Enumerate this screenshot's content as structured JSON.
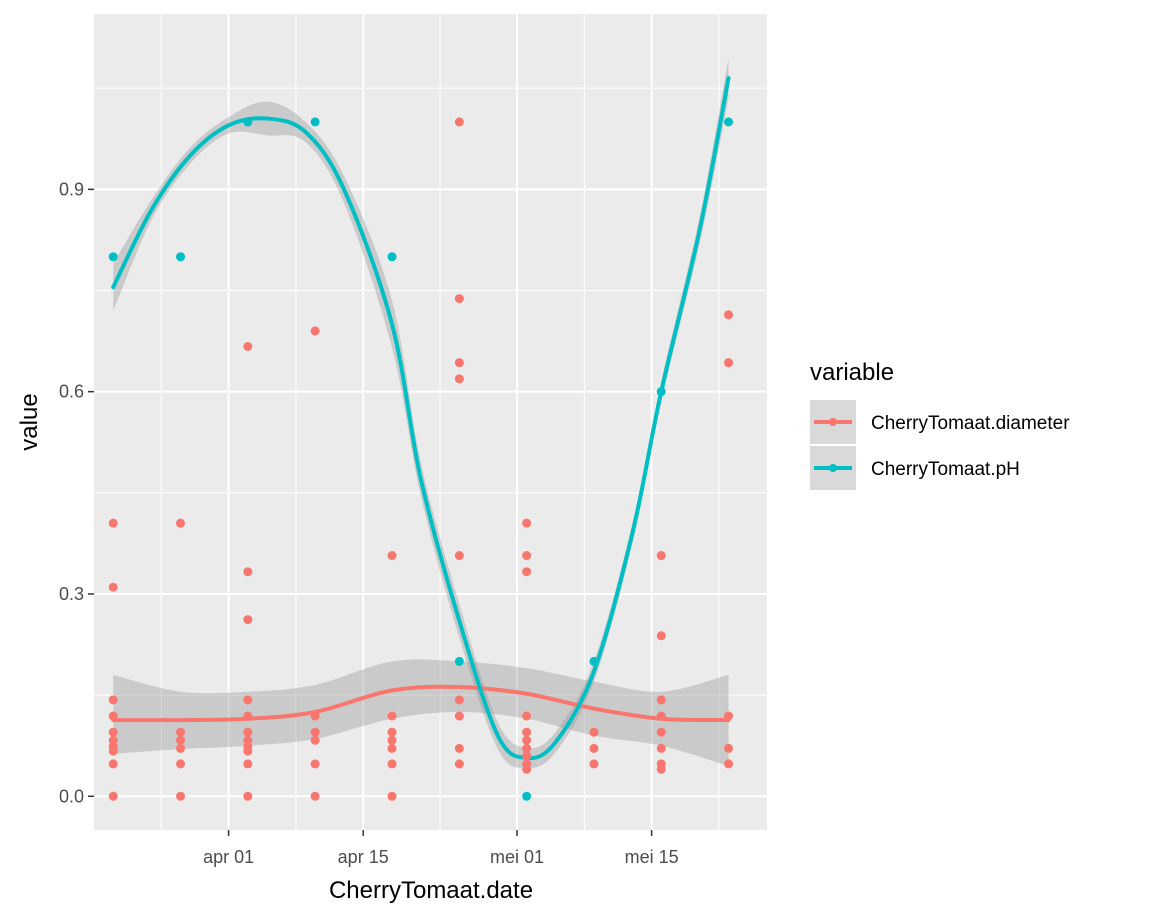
{
  "chart_data": {
    "type": "scatter",
    "xlabel": "CherryTomaat.date",
    "ylabel": "value",
    "x_ticks": [
      "apr 01",
      "apr 15",
      "mei 01",
      "mei 15"
    ],
    "y_ticks": [
      "0.0",
      "0.3",
      "0.6",
      "0.9"
    ],
    "ylim": [
      -0.05,
      1.16
    ],
    "xlim": [
      "2023-03-18",
      "2023-05-27"
    ],
    "grid": true,
    "legend": {
      "title": "variable",
      "placement": "right",
      "entries": [
        "CherryTomaat.diameter",
        "CherryTomaat.pH"
      ]
    },
    "smoother_band": true,
    "series": [
      {
        "name": "CherryTomaat.diameter",
        "color": "#F8766D",
        "points": [
          {
            "x": "2023-03-20",
            "y": [
              0,
              0.048,
              0.067,
              0.074,
              0.083,
              0.095,
              0.119,
              0.143,
              0.31,
              0.405
            ]
          },
          {
            "x": "2023-03-27",
            "y": [
              0,
              0.048,
              0.071,
              0.083,
              0.095,
              0.405
            ]
          },
          {
            "x": "2023-04-03",
            "y": [
              0,
              0.048,
              0.067,
              0.074,
              0.083,
              0.095,
              0.119,
              0.143,
              0.262,
              0.333,
              0.667
            ]
          },
          {
            "x": "2023-04-10",
            "y": [
              0,
              0.048,
              0.083,
              0.095,
              0.119,
              0.69
            ]
          },
          {
            "x": "2023-04-18",
            "y": [
              0,
              0.048,
              0.071,
              0.083,
              0.095,
              0.119,
              0.357
            ]
          },
          {
            "x": "2023-04-25",
            "y": [
              0.048,
              0.071,
              0.119,
              0.143,
              0.357,
              0.619,
              0.643,
              0.738,
              1.0
            ]
          },
          {
            "x": "2023-05-02",
            "y": [
              0.04,
              0.048,
              0.06,
              0.071,
              0.083,
              0.095,
              0.119,
              0.333,
              0.357,
              0.405
            ]
          },
          {
            "x": "2023-05-09",
            "y": [
              0.048,
              0.071,
              0.095
            ]
          },
          {
            "x": "2023-05-16",
            "y": [
              0.04,
              0.048,
              0.071,
              0.095,
              0.119,
              0.143,
              0.238,
              0.357
            ]
          },
          {
            "x": "2023-05-23",
            "y": [
              0.048,
              0.071,
              0.119,
              0.643,
              0.714
            ]
          }
        ],
        "smooth": [
          {
            "x": "2023-03-20",
            "y": 0.113
          },
          {
            "x": "2023-03-27",
            "y": 0.113
          },
          {
            "x": "2023-04-03",
            "y": 0.115
          },
          {
            "x": "2023-04-10",
            "y": 0.125
          },
          {
            "x": "2023-04-18",
            "y": 0.157
          },
          {
            "x": "2023-04-25",
            "y": 0.162
          },
          {
            "x": "2023-05-02",
            "y": 0.152
          },
          {
            "x": "2023-05-09",
            "y": 0.13
          },
          {
            "x": "2023-05-16",
            "y": 0.115
          },
          {
            "x": "2023-05-23",
            "y": 0.113
          }
        ],
        "band": [
          {
            "x": "2023-03-20",
            "lo": 0.063,
            "hi": 0.18
          },
          {
            "x": "2023-03-27",
            "lo": 0.07,
            "hi": 0.155
          },
          {
            "x": "2023-04-03",
            "lo": 0.075,
            "hi": 0.155
          },
          {
            "x": "2023-04-10",
            "lo": 0.085,
            "hi": 0.165
          },
          {
            "x": "2023-04-18",
            "lo": 0.115,
            "hi": 0.2
          },
          {
            "x": "2023-04-25",
            "lo": 0.125,
            "hi": 0.2
          },
          {
            "x": "2023-05-02",
            "lo": 0.115,
            "hi": 0.19
          },
          {
            "x": "2023-05-09",
            "lo": 0.09,
            "hi": 0.17
          },
          {
            "x": "2023-05-16",
            "lo": 0.075,
            "hi": 0.155
          },
          {
            "x": "2023-05-23",
            "lo": 0.045,
            "hi": 0.18
          }
        ]
      },
      {
        "name": "CherryTomaat.pH",
        "color": "#00BFC4",
        "points": [
          {
            "x": "2023-03-20",
            "y": [
              0.8
            ]
          },
          {
            "x": "2023-03-27",
            "y": [
              0.8
            ]
          },
          {
            "x": "2023-04-03",
            "y": [
              1.0
            ]
          },
          {
            "x": "2023-04-10",
            "y": [
              1.0
            ]
          },
          {
            "x": "2023-04-18",
            "y": [
              0.8
            ]
          },
          {
            "x": "2023-04-25",
            "y": [
              0.2
            ]
          },
          {
            "x": "2023-05-02",
            "y": [
              0.0
            ]
          },
          {
            "x": "2023-05-09",
            "y": [
              0.2
            ]
          },
          {
            "x": "2023-05-16",
            "y": [
              0.6
            ]
          },
          {
            "x": "2023-05-23",
            "y": [
              1.0
            ]
          }
        ],
        "smooth": [
          {
            "x": "2023-03-20",
            "y": 0.755
          },
          {
            "x": "2023-03-24",
            "y": 0.87
          },
          {
            "x": "2023-03-28",
            "y": 0.95
          },
          {
            "x": "2023-04-01",
            "y": 0.995
          },
          {
            "x": "2023-04-05",
            "y": 1.005
          },
          {
            "x": "2023-04-09",
            "y": 0.985
          },
          {
            "x": "2023-04-13",
            "y": 0.9
          },
          {
            "x": "2023-04-18",
            "y": 0.7
          },
          {
            "x": "2023-04-21",
            "y": 0.47
          },
          {
            "x": "2023-04-25",
            "y": 0.26
          },
          {
            "x": "2023-04-29",
            "y": 0.09
          },
          {
            "x": "2023-05-02",
            "y": 0.057
          },
          {
            "x": "2023-05-05",
            "y": 0.08
          },
          {
            "x": "2023-05-09",
            "y": 0.185
          },
          {
            "x": "2023-05-13",
            "y": 0.39
          },
          {
            "x": "2023-05-16",
            "y": 0.6
          },
          {
            "x": "2023-05-20",
            "y": 0.84
          },
          {
            "x": "2023-05-23",
            "y": 1.065
          }
        ],
        "band_halfwidth": [
          0.035,
          0.015,
          0.012,
          0.012,
          0.025,
          0.015,
          0.02,
          0.035,
          0.025,
          0.025,
          0.02,
          0.015,
          0.015,
          0.015,
          0.015,
          0.015,
          0.02,
          0.03
        ]
      }
    ]
  }
}
